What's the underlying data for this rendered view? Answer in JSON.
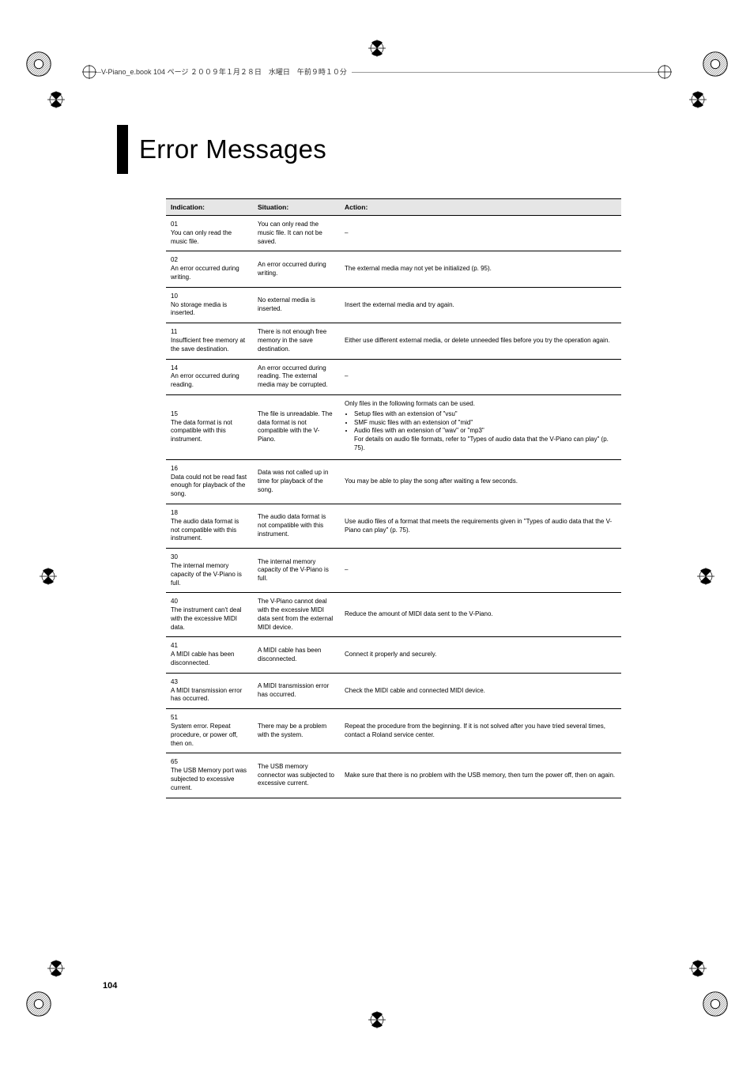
{
  "header_text": "V-Piano_e.book  104 ページ  ２００９年１月２８日　水曜日　午前９時１０分",
  "title": "Error Messages",
  "page_number": "104",
  "columns": {
    "indication": "Indication:",
    "situation": "Situation:",
    "action": "Action:"
  },
  "rows": [
    {
      "indication": "01\nYou can only read the music file.",
      "situation": "You can only read the music file. It can not be saved.",
      "action": "–"
    },
    {
      "indication": "02\nAn error occurred during writing.",
      "situation": "An error occurred during writing.",
      "action": "The external media may not yet be initialized (p. 95)."
    },
    {
      "indication": "10\nNo storage media is inserted.",
      "situation": "No external media is inserted.",
      "action": "Insert the external media and try again."
    },
    {
      "indication": "11\nInsufficient free memory at the save destination.",
      "situation": "There is not enough free memory in the save destination.",
      "action": "Either use different external media, or delete unneeded files before you try the operation again."
    },
    {
      "indication": "14\nAn error occurred during reading.",
      "situation": "An error occurred during reading. The external media may be corrupted.",
      "action": "–"
    },
    {
      "indication": "15\nThe data format is not compatible with this instrument.",
      "situation": "The file is unreadable. The data format is not compatible with the V-Piano.",
      "action_intro": "Only files in the following formats can be used.",
      "action_items": [
        "Setup files with an extension of \"vsu\"",
        "SMF music files with an extension of \"mid\"",
        "Audio files with an extension of \"wav\" or \"mp3\"\nFor details on audio file formats, refer to  \"Types of audio data that the V-Piano can play\" (p. 75)."
      ]
    },
    {
      "indication": "16\nData could not be read fast enough for playback of the song.",
      "situation": "Data was not called up in time for playback of the song.",
      "action": "You may be able to play the song after waiting a few seconds."
    },
    {
      "indication": "18\nThe audio data format is not compatible with this instrument.",
      "situation": "The audio data format is not compatible with this instrument.",
      "action": "Use audio files of a format that meets the requirements given in  \"Types of audio data that the V-Piano can play\" (p. 75)."
    },
    {
      "indication": "30\nThe internal memory capacity of the V-Piano is full.",
      "situation": "The internal memory capacity of the V-Piano is full.",
      "action": "–"
    },
    {
      "indication": "40\nThe instrument can't deal with the excessive MIDI data.",
      "situation": "The V-Piano cannot deal with the excessive MIDI data sent from the external MIDI device.",
      "action": "Reduce the amount of MIDI data sent to the V-Piano."
    },
    {
      "indication": "41\nA MIDI cable has been disconnected.",
      "situation": "A MIDI cable has been disconnected.",
      "action": "Connect it properly and securely."
    },
    {
      "indication": "43\nA MIDI transmission error has occurred.",
      "situation": "A MIDI transmission error has occurred.",
      "action": "Check the MIDI cable and connected MIDI device."
    },
    {
      "indication": "51\nSystem error. Repeat procedure, or power off, then on.",
      "situation": "There may be a problem with the system.",
      "action": "Repeat the procedure from the beginning. If it is not solved after you have tried several times, contact a Roland service center."
    },
    {
      "indication": "65\nThe USB Memory port was subjected to excessive current.",
      "situation": "The USB memory connector was subjected to excessive current.",
      "action": "Make sure that there is no problem with the USB memory, then turn the power off, then on again."
    }
  ]
}
